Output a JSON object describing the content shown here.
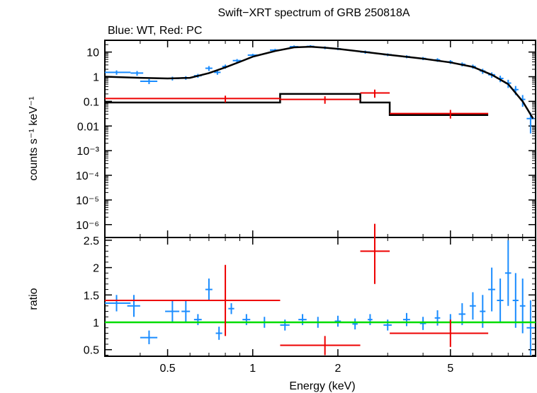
{
  "title": "Swift−XRT spectrum of GRB 250818A",
  "subtitle": "Blue: WT, Red: PC",
  "colors": {
    "wt": "#1a8cff",
    "pc": "#ee0000",
    "model": "#000000",
    "unity": "#00dd00"
  },
  "chart_data": [
    {
      "type": "scatter",
      "panel": "spectrum",
      "ylabel": "counts s⁻¹ keV⁻¹",
      "xscale": "log",
      "yscale": "log",
      "xlim": [
        0.3,
        10
      ],
      "ylim": [
        3e-07,
        30
      ],
      "yticks": [
        {
          "v": 10,
          "t": "10"
        },
        {
          "v": 1,
          "t": "1"
        },
        {
          "v": 0.1,
          "t": "0.1"
        },
        {
          "v": 0.01,
          "t": "0.01"
        },
        {
          "v": 0.001,
          "t": "10⁻³"
        },
        {
          "v": 0.0001,
          "t": "10⁻⁴"
        },
        {
          "v": 1e-05,
          "t": "10⁻⁵"
        },
        {
          "v": 1e-06,
          "t": "10⁻⁶"
        }
      ],
      "series": [
        {
          "name": "Blue: WT",
          "points": [
            [
              0.33,
              1.5,
              0.3,
              0.37,
              1.2,
              1.8
            ],
            [
              0.39,
              1.4,
              0.37,
              0.41,
              1.1,
              1.7
            ],
            [
              0.43,
              0.65,
              0.4,
              0.46,
              0.5,
              0.8
            ],
            [
              0.52,
              0.85,
              0.49,
              0.55,
              0.7,
              1.0
            ],
            [
              0.58,
              0.9,
              0.56,
              0.6,
              0.75,
              1.05
            ],
            [
              0.64,
              1.1,
              0.62,
              0.66,
              0.9,
              1.3
            ],
            [
              0.7,
              2.2,
              0.68,
              0.72,
              1.7,
              2.7
            ],
            [
              0.75,
              1.5,
              0.73,
              0.77,
              1.2,
              1.8
            ],
            [
              0.8,
              2.6,
              0.78,
              0.82,
              2.1,
              3.1
            ],
            [
              0.88,
              4.5,
              0.85,
              0.91,
              3.8,
              5.2
            ],
            [
              1.0,
              7.5,
              0.96,
              1.04,
              6.5,
              8.5
            ],
            [
              1.2,
              12.0,
              1.15,
              1.25,
              10.5,
              13.5
            ],
            [
              1.4,
              16.5,
              1.35,
              1.45,
              14.5,
              18.5
            ],
            [
              1.6,
              17.0,
              1.55,
              1.65,
              15.0,
              19.0
            ],
            [
              1.8,
              15.0,
              1.75,
              1.85,
              13.0,
              17.0
            ],
            [
              2.0,
              13.5,
              1.95,
              2.05,
              12.0,
              15.0
            ],
            [
              2.5,
              10.0,
              2.4,
              2.6,
              8.5,
              11.5
            ],
            [
              3.0,
              7.8,
              2.9,
              3.1,
              6.8,
              8.8
            ],
            [
              3.5,
              6.5,
              3.4,
              3.6,
              5.6,
              7.4
            ],
            [
              4.0,
              5.5,
              3.9,
              4.1,
              4.7,
              6.3
            ],
            [
              4.5,
              4.8,
              4.4,
              4.6,
              4.0,
              5.6
            ],
            [
              5.0,
              4.0,
              4.9,
              5.1,
              3.3,
              4.7
            ],
            [
              5.5,
              3.2,
              5.35,
              5.65,
              2.6,
              3.8
            ],
            [
              6.0,
              2.6,
              5.85,
              6.15,
              2.1,
              3.1
            ],
            [
              6.5,
              1.7,
              6.35,
              6.65,
              1.3,
              2.1
            ],
            [
              7.0,
              1.2,
              6.8,
              7.2,
              0.9,
              1.5
            ],
            [
              7.5,
              0.85,
              7.3,
              7.7,
              0.6,
              1.1
            ],
            [
              8.0,
              0.55,
              7.8,
              8.2,
              0.35,
              0.75
            ],
            [
              8.5,
              0.3,
              8.3,
              8.7,
              0.18,
              0.42
            ],
            [
              9.0,
              0.12,
              8.8,
              9.2,
              0.06,
              0.18
            ],
            [
              9.6,
              0.02,
              9.3,
              9.9,
              0.005,
              0.035
            ]
          ]
        },
        {
          "name": "Red: PC",
          "points": [
            [
              0.8,
              0.13,
              0.3,
              1.25,
              0.09,
              0.17
            ],
            [
              1.8,
              0.12,
              1.25,
              2.4,
              0.08,
              0.16
            ],
            [
              2.7,
              0.22,
              2.4,
              3.05,
              0.14,
              0.3
            ],
            [
              5.0,
              0.032,
              3.05,
              6.8,
              0.02,
              0.045
            ]
          ]
        },
        {
          "name": "model",
          "wt_curve": [
            [
              0.3,
              1.0
            ],
            [
              0.4,
              0.9
            ],
            [
              0.5,
              0.85
            ],
            [
              0.6,
              0.9
            ],
            [
              0.7,
              1.4
            ],
            [
              0.8,
              2.4
            ],
            [
              0.9,
              4.0
            ],
            [
              1.0,
              6.5
            ],
            [
              1.2,
              11.0
            ],
            [
              1.4,
              15.5
            ],
            [
              1.6,
              16.5
            ],
            [
              1.8,
              15.0
            ],
            [
              2.0,
              13.5
            ],
            [
              2.5,
              10.0
            ],
            [
              3.0,
              7.8
            ],
            [
              4.0,
              5.4
            ],
            [
              5.0,
              3.8
            ],
            [
              6.0,
              2.5
            ],
            [
              7.0,
              1.2
            ],
            [
              8.0,
              0.5
            ],
            [
              9.0,
              0.1
            ],
            [
              9.8,
              0.02
            ]
          ],
          "pc_steps": [
            [
              0.3,
              1.25,
              0.09
            ],
            [
              1.25,
              2.4,
              0.2
            ],
            [
              2.4,
              3.05,
              0.09
            ],
            [
              3.05,
              6.8,
              0.028
            ]
          ]
        }
      ]
    },
    {
      "type": "scatter",
      "panel": "ratio",
      "xlabel": "Energy (keV)",
      "ylabel": "ratio",
      "xscale": "log",
      "xlim": [
        0.3,
        10
      ],
      "ylim": [
        0.38,
        2.55
      ],
      "xticks": [
        {
          "v": 0.5,
          "t": "0.5"
        },
        {
          "v": 1,
          "t": "1"
        },
        {
          "v": 2,
          "t": "2"
        },
        {
          "v": 5,
          "t": "5"
        }
      ],
      "yticks": [
        {
          "v": 0.5,
          "t": "0.5"
        },
        {
          "v": 1,
          "t": "1"
        },
        {
          "v": 1.5,
          "t": "1.5"
        },
        {
          "v": 2,
          "t": "2"
        },
        {
          "v": 2.5,
          "t": "2.5"
        }
      ],
      "reference_line": 1,
      "series": [
        {
          "name": "Blue: WT",
          "points": [
            [
              0.33,
              1.35,
              0.3,
              0.37,
              1.2,
              1.5
            ],
            [
              0.38,
              1.3,
              0.36,
              0.4,
              1.1,
              1.5
            ],
            [
              0.43,
              0.72,
              0.4,
              0.46,
              0.6,
              0.85
            ],
            [
              0.52,
              1.2,
              0.49,
              0.55,
              1.0,
              1.4
            ],
            [
              0.58,
              1.2,
              0.56,
              0.6,
              1.0,
              1.4
            ],
            [
              0.64,
              1.05,
              0.62,
              0.66,
              0.95,
              1.15
            ],
            [
              0.7,
              1.6,
              0.68,
              0.72,
              1.4,
              1.8
            ],
            [
              0.76,
              0.8,
              0.74,
              0.78,
              0.68,
              0.92
            ],
            [
              0.84,
              1.25,
              0.82,
              0.86,
              1.15,
              1.35
            ],
            [
              0.95,
              1.05,
              0.92,
              0.98,
              0.95,
              1.15
            ],
            [
              1.1,
              1.0,
              1.05,
              1.15,
              0.9,
              1.1
            ],
            [
              1.3,
              0.95,
              1.25,
              1.35,
              0.85,
              1.05
            ],
            [
              1.5,
              1.05,
              1.45,
              1.55,
              0.95,
              1.15
            ],
            [
              1.7,
              1.0,
              1.65,
              1.75,
              0.9,
              1.1
            ],
            [
              2.0,
              1.02,
              1.95,
              2.05,
              0.92,
              1.12
            ],
            [
              2.3,
              0.97,
              2.25,
              2.35,
              0.87,
              1.07
            ],
            [
              2.6,
              1.05,
              2.55,
              2.65,
              0.95,
              1.15
            ],
            [
              3.0,
              0.95,
              2.9,
              3.1,
              0.85,
              1.05
            ],
            [
              3.5,
              1.05,
              3.4,
              3.6,
              0.93,
              1.17
            ],
            [
              4.0,
              0.98,
              3.9,
              4.1,
              0.86,
              1.1
            ],
            [
              4.5,
              1.08,
              4.4,
              4.6,
              0.94,
              1.22
            ],
            [
              5.0,
              1.0,
              4.9,
              5.1,
              0.85,
              1.15
            ],
            [
              5.5,
              1.15,
              5.35,
              5.65,
              0.95,
              1.35
            ],
            [
              6.0,
              1.3,
              5.85,
              6.15,
              1.05,
              1.55
            ],
            [
              6.5,
              1.2,
              6.35,
              6.65,
              0.9,
              1.5
            ],
            [
              7.0,
              1.6,
              6.8,
              7.2,
              1.2,
              2.0
            ],
            [
              7.5,
              1.4,
              7.3,
              7.7,
              1.0,
              1.8
            ],
            [
              8.0,
              1.9,
              7.8,
              8.2,
              1.3,
              2.5
            ],
            [
              8.5,
              1.4,
              8.3,
              8.7,
              0.9,
              1.9
            ],
            [
              9.0,
              1.3,
              8.8,
              9.2,
              0.8,
              1.8
            ],
            [
              9.6,
              0.9,
              9.3,
              9.9,
              0.4,
              1.4
            ]
          ]
        },
        {
          "name": "Red: PC",
          "points": [
            [
              0.8,
              1.4,
              0.3,
              1.25,
              0.75,
              2.05
            ],
            [
              1.8,
              0.58,
              1.25,
              2.4,
              0.4,
              0.75
            ],
            [
              2.7,
              2.3,
              2.4,
              3.05,
              1.7,
              2.8
            ],
            [
              5.0,
              0.8,
              3.05,
              6.8,
              0.55,
              1.05
            ]
          ]
        }
      ]
    }
  ]
}
